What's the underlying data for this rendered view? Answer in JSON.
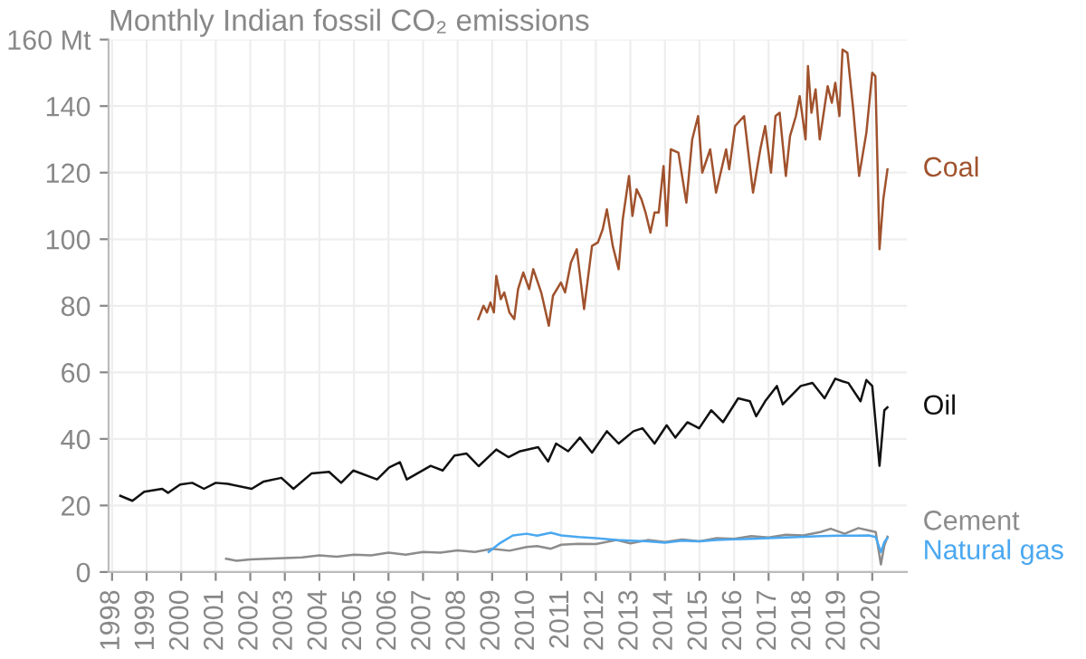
{
  "chart_data": {
    "type": "line",
    "title": "Monthly Indian fossil CO₂ emissions",
    "grid": true,
    "legend": false,
    "line_style": "solid",
    "marker": "none",
    "xlim": [
      1997.9,
      2021
    ],
    "xticks": [
      1998,
      1999,
      2000,
      2001,
      2002,
      2003,
      2004,
      2005,
      2006,
      2007,
      2008,
      2009,
      2010,
      2011,
      2012,
      2013,
      2014,
      2015,
      2016,
      2017,
      2018,
      2019,
      2020
    ],
    "ylim": [
      0,
      160
    ],
    "yticks": [
      0,
      20,
      40,
      60,
      80,
      100,
      120,
      140,
      {
        "value": 160,
        "label": "160 Mt"
      }
    ],
    "series": [
      {
        "name": "Coal",
        "color": "#a0522d",
        "x": [
          2008.6,
          2008.75,
          2008.85,
          2008.95,
          2009.05,
          2009.12,
          2009.25,
          2009.35,
          2009.5,
          2009.64,
          2009.75,
          2009.9,
          2010.07,
          2010.19,
          2010.42,
          2010.64,
          2010.76,
          2010.99,
          2011.11,
          2011.28,
          2011.45,
          2011.66,
          2011.89,
          2012.06,
          2012.2,
          2012.32,
          2012.49,
          2012.66,
          2012.78,
          2012.96,
          2013.06,
          2013.18,
          2013.32,
          2013.44,
          2013.58,
          2013.7,
          2013.82,
          2013.96,
          2014.05,
          2014.17,
          2014.39,
          2014.62,
          2014.79,
          2014.96,
          2015.08,
          2015.31,
          2015.48,
          2015.77,
          2015.86,
          2016.03,
          2016.29,
          2016.55,
          2016.76,
          2016.9,
          2017.07,
          2017.2,
          2017.32,
          2017.5,
          2017.62,
          2017.79,
          2017.9,
          2018.07,
          2018.14,
          2018.24,
          2018.36,
          2018.48,
          2018.71,
          2018.83,
          2018.93,
          2019.05,
          2019.14,
          2019.28,
          2019.45,
          2019.62,
          2019.83,
          2020.0,
          2020.09,
          2020.21,
          2020.32,
          2020.44
        ],
        "values": [
          76,
          80,
          78,
          81,
          78,
          89,
          82,
          84,
          78,
          76,
          85,
          90,
          85,
          91,
          84,
          74,
          83,
          87,
          84,
          93,
          97,
          79,
          98,
          99,
          103,
          109,
          98,
          91,
          106,
          119,
          107,
          115,
          112,
          108,
          102,
          108,
          108,
          122,
          104,
          127,
          126,
          111,
          130,
          137,
          120,
          127,
          114,
          127,
          121,
          134,
          137,
          114,
          127,
          134,
          120,
          137,
          138,
          119,
          131,
          137,
          143,
          130,
          152,
          138,
          145,
          130,
          146,
          141,
          147,
          137,
          157,
          156,
          139,
          119,
          132,
          150,
          149,
          97,
          112,
          121
        ]
      },
      {
        "name": "Oil",
        "color": "#111111",
        "x": [
          1998.24,
          1998.59,
          1998.93,
          1999.45,
          1999.62,
          1999.97,
          2000.32,
          2000.66,
          2001.0,
          2001.35,
          2002.04,
          2002.39,
          2002.9,
          2003.25,
          2003.77,
          2004.28,
          2004.63,
          2004.98,
          2005.67,
          2006.02,
          2006.33,
          2006.53,
          2007.22,
          2007.57,
          2007.91,
          2008.26,
          2008.61,
          2009.12,
          2009.47,
          2009.81,
          2010.33,
          2010.62,
          2010.85,
          2011.2,
          2011.54,
          2011.89,
          2012.32,
          2012.66,
          2013.09,
          2013.35,
          2013.7,
          2014.05,
          2014.3,
          2014.65,
          2014.99,
          2015.34,
          2015.68,
          2016.12,
          2016.46,
          2016.64,
          2016.9,
          2017.24,
          2017.41,
          2017.93,
          2018.27,
          2018.62,
          2018.93,
          2019.14,
          2019.31,
          2019.66,
          2019.83,
          2020.0,
          2020.21,
          2020.35,
          2020.44
        ],
        "values": [
          22.9,
          21.4,
          24.1,
          25,
          23.8,
          26.3,
          26.8,
          25,
          26.8,
          26.5,
          25,
          27.2,
          28.3,
          25,
          29.6,
          30.1,
          26.8,
          30.5,
          27.8,
          31.4,
          33,
          27.8,
          31.9,
          30.5,
          35,
          35.6,
          31.8,
          36.8,
          34.5,
          36.3,
          37.5,
          33.2,
          38.6,
          36.3,
          40.4,
          35.9,
          42.3,
          38.6,
          42.3,
          43.2,
          38.6,
          44.1,
          40.4,
          45,
          43.2,
          48.6,
          45,
          52.2,
          51.3,
          46.8,
          51.3,
          55.9,
          50.4,
          55.9,
          56.8,
          52.2,
          58.1,
          57.3,
          56.8,
          51.3,
          57.7,
          55.9,
          31.9,
          48.6,
          49.5
        ]
      },
      {
        "name": "Cement",
        "color": "#8c8c8c",
        "x": [
          2001.3,
          2001.6,
          2002.0,
          2002.5,
          2003.0,
          2003.5,
          2004.0,
          2004.5,
          2005.0,
          2005.5,
          2006.0,
          2006.5,
          2007.0,
          2007.5,
          2008.0,
          2008.5,
          2009.0,
          2009.5,
          2010.0,
          2010.3,
          2010.7,
          2011.0,
          2011.5,
          2012.0,
          2012.6,
          2013.0,
          2013.5,
          2014.0,
          2014.5,
          2015.0,
          2015.5,
          2016.0,
          2016.5,
          2017.0,
          2017.5,
          2018.0,
          2018.5,
          2018.8,
          2019.2,
          2019.6,
          2019.9,
          2020.1,
          2020.25,
          2020.35,
          2020.44
        ],
        "values": [
          4,
          3.4,
          3.8,
          4,
          4.2,
          4.4,
          5,
          4.6,
          5.2,
          5,
          5.8,
          5.2,
          6,
          5.8,
          6.5,
          6,
          7,
          6.4,
          7.5,
          7.8,
          7,
          8.2,
          8.5,
          8.4,
          9.6,
          8.6,
          9.6,
          9,
          9.8,
          9.2,
          10.2,
          10,
          10.8,
          10.4,
          11.2,
          11,
          12,
          13,
          11.5,
          13.2,
          12.5,
          12,
          2.3,
          8,
          10.6
        ]
      },
      {
        "name": "Natural gas",
        "color": "#4aa8f0",
        "x": [
          2008.9,
          2009.2,
          2009.6,
          2010.0,
          2010.3,
          2010.7,
          2011.0,
          2011.5,
          2012.0,
          2012.6,
          2013.0,
          2013.5,
          2014.0,
          2014.5,
          2015.0,
          2015.5,
          2016.0,
          2016.5,
          2017.0,
          2017.5,
          2018.0,
          2018.5,
          2019.0,
          2019.5,
          2019.9,
          2020.1,
          2020.25,
          2020.35,
          2020.44
        ],
        "values": [
          6,
          8.5,
          11,
          11.5,
          10.9,
          11.8,
          11,
          10.5,
          10.2,
          9.6,
          9.4,
          9.2,
          8.8,
          9.4,
          9.2,
          9.6,
          9.8,
          10,
          10.2,
          10.4,
          10.6,
          10.8,
          10.9,
          10.9,
          11,
          10.5,
          6,
          9,
          10.2
        ]
      }
    ]
  }
}
